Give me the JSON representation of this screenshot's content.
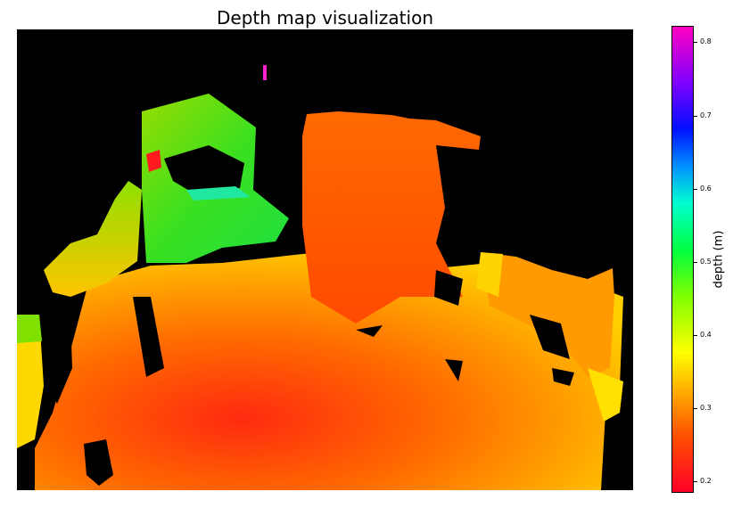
{
  "chart_data": {
    "type": "heatmap",
    "title": "Depth map visualization",
    "axes": "off",
    "colormap": "gist_rainbow",
    "background_no_data": "#000000",
    "colorbar": {
      "label": "depth (m)",
      "vmin": 0.18,
      "vmax": 0.82,
      "ticks": [
        "0.2",
        "0.3",
        "0.4",
        "0.5",
        "0.6",
        "0.7",
        "0.8"
      ]
    }
  }
}
